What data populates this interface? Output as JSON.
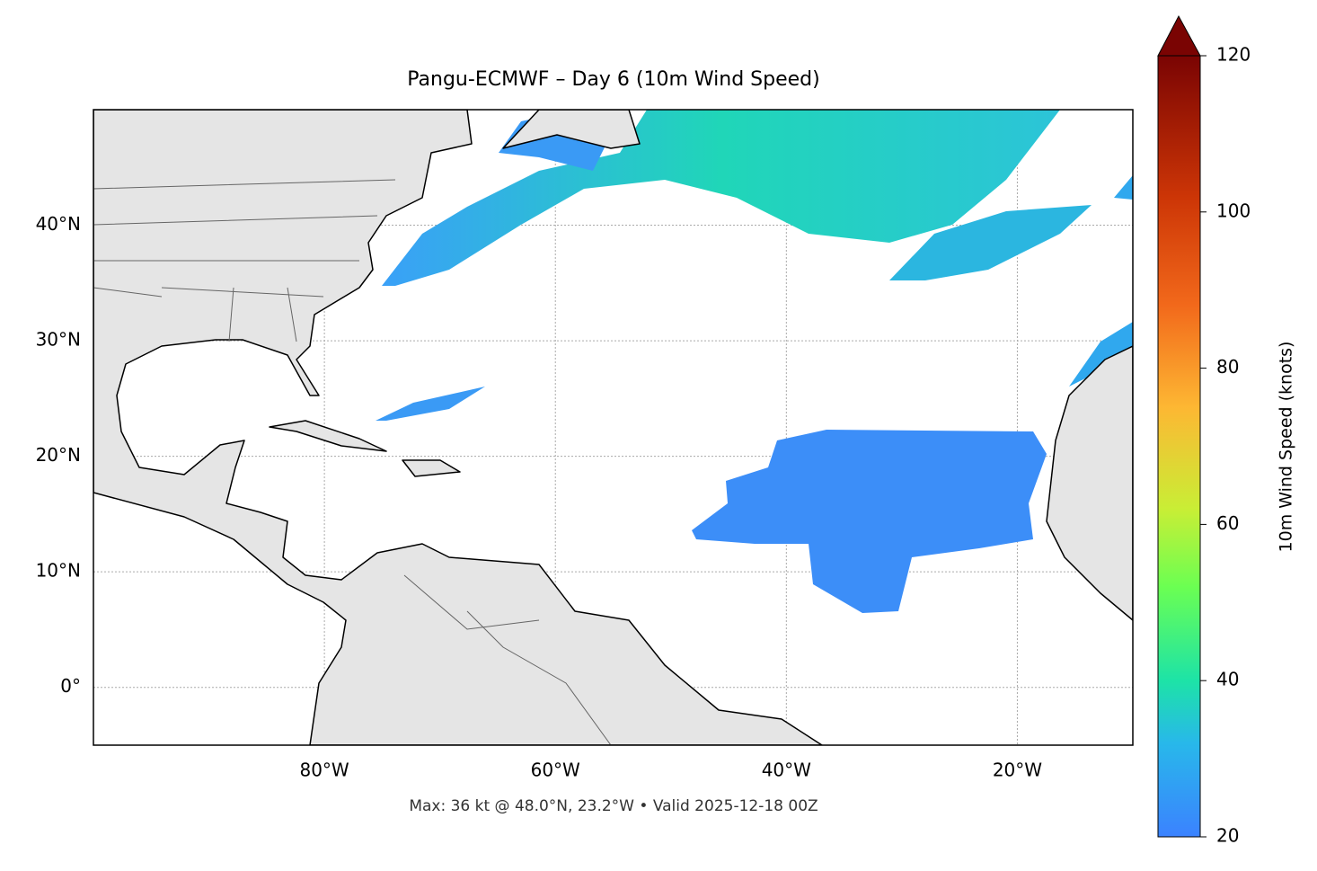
{
  "map": {
    "title": "Pangu-ECMWF – Day 6 (10m Wind Speed)",
    "footer": "Max: 36 kt @ 48.0°N, 23.2°W • Valid 2025-12-18 00Z",
    "xlim": [
      -100,
      -10
    ],
    "ylim": [
      -5,
      50
    ],
    "xticks": [
      {
        "value": -80,
        "label": "80°W"
      },
      {
        "value": -60,
        "label": "60°W"
      },
      {
        "value": -40,
        "label": "40°W"
      },
      {
        "value": -20,
        "label": "20°W"
      }
    ],
    "yticks": [
      {
        "value": 0,
        "label": "0°"
      },
      {
        "value": 10,
        "label": "10°N"
      },
      {
        "value": 20,
        "label": "20°N"
      },
      {
        "value": 30,
        "label": "30°N"
      },
      {
        "value": 40,
        "label": "40°N"
      }
    ],
    "grid": true,
    "colorbar": {
      "label": "10m Wind Speed (knots)",
      "lim": [
        20,
        120
      ],
      "ticks": [
        20,
        40,
        60,
        80,
        100,
        120
      ]
    }
  }
}
